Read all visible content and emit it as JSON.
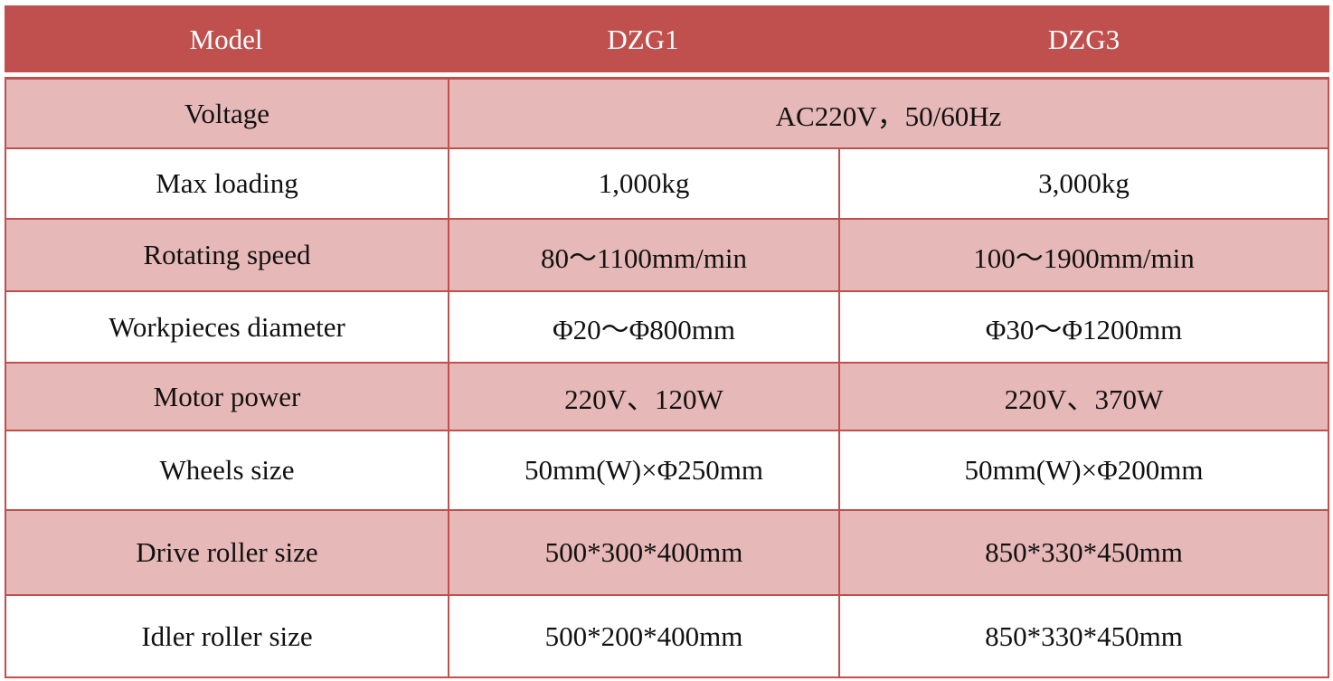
{
  "table": {
    "header": [
      "Model",
      "DZG1",
      "DZG3"
    ],
    "rows": [
      [
        "Voltage",
        "AC220V，50/60Hz"
      ],
      [
        "Max loading",
        "1,000kg",
        "3,000kg"
      ],
      [
        "Rotating speed",
        "80～1100mm/min",
        "100～1900mm/min"
      ],
      [
        "Workpieces diameter",
        "Φ20～Φ800mm",
        "Φ30～Φ1200mm"
      ],
      [
        "Motor power",
        "220V、120W",
        "220V、370W"
      ],
      [
        "Wheels size",
        "50mm(W)×Φ250mm",
        "50mm(W)×Φ200mm"
      ],
      [
        "Drive roller size",
        "500*300*400mm",
        "850*330*450mm"
      ],
      [
        "Idler roller size",
        "500*200*400mm",
        "850*330*450mm"
      ]
    ]
  }
}
